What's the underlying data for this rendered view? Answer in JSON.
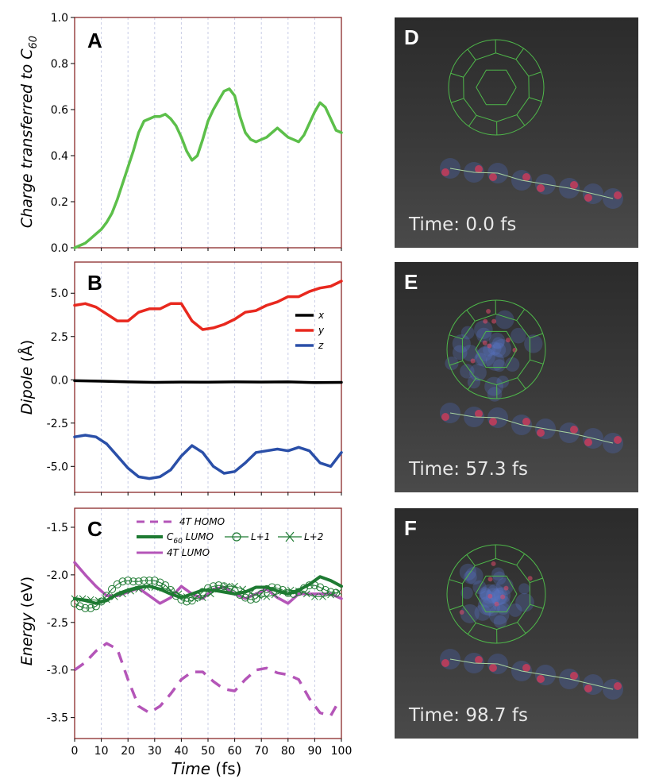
{
  "colors": {
    "green": "#5cbf4a",
    "red": "#e8281e",
    "black": "#000000",
    "blue": "#2a4fa8",
    "magenta": "#b455b8",
    "darkgreen": "#1e7a32",
    "frame": "#8a2a2a",
    "grid": "#c9cde6"
  },
  "x_axis": {
    "label_italic": "Time",
    "label_unit": "(fs)",
    "ticks": [
      0,
      10,
      20,
      30,
      40,
      50,
      60,
      70,
      80,
      90,
      100
    ]
  },
  "chart_data": [
    {
      "type": "line",
      "panel": "A",
      "ylabel": "Charge transferred to C",
      "ylabel_sub": "60",
      "ylim": [
        0,
        1.0
      ],
      "yticks": [
        "0.0",
        "0.2",
        "0.4",
        "0.6",
        "0.8",
        "1.0"
      ],
      "grid": "vertical",
      "series": [
        {
          "color": "green",
          "x": [
            0,
            2,
            4,
            6,
            8,
            10,
            12,
            14,
            16,
            18,
            20,
            22,
            24,
            26,
            28,
            30,
            32,
            34,
            36,
            38,
            40,
            42,
            44,
            46,
            48,
            50,
            52,
            54,
            56,
            58,
            60,
            62,
            64,
            66,
            68,
            70,
            72,
            74,
            76,
            78,
            80,
            82,
            84,
            86,
            88,
            90,
            92,
            94,
            96,
            98,
            100
          ],
          "y": [
            0,
            0.01,
            0.02,
            0.04,
            0.06,
            0.08,
            0.11,
            0.15,
            0.21,
            0.28,
            0.35,
            0.42,
            0.5,
            0.55,
            0.56,
            0.57,
            0.57,
            0.58,
            0.56,
            0.53,
            0.48,
            0.42,
            0.38,
            0.4,
            0.47,
            0.55,
            0.6,
            0.64,
            0.68,
            0.69,
            0.66,
            0.57,
            0.5,
            0.47,
            0.46,
            0.47,
            0.48,
            0.5,
            0.52,
            0.5,
            0.48,
            0.47,
            0.46,
            0.49,
            0.54,
            0.59,
            0.63,
            0.61,
            0.56,
            0.51,
            0.5
          ]
        }
      ]
    },
    {
      "type": "line",
      "panel": "B",
      "ylabel": "Dipole (Å)",
      "ylim": [
        -6.5,
        6.8
      ],
      "yticks": [
        "-5.0",
        "-2.5",
        "0.0",
        "2.5",
        "5.0"
      ],
      "grid": "vertical",
      "legend": [
        "x",
        "y",
        "z"
      ],
      "series": [
        {
          "name": "x",
          "color": "black",
          "x": [
            0,
            10,
            20,
            30,
            40,
            50,
            60,
            70,
            80,
            90,
            100
          ],
          "y": [
            -0.05,
            -0.08,
            -0.12,
            -0.15,
            -0.13,
            -0.14,
            -0.12,
            -0.13,
            -0.12,
            -0.16,
            -0.15
          ]
        },
        {
          "name": "y",
          "color": "red",
          "x": [
            0,
            4,
            8,
            12,
            16,
            20,
            24,
            28,
            32,
            36,
            40,
            44,
            48,
            52,
            56,
            60,
            64,
            68,
            72,
            76,
            80,
            84,
            88,
            92,
            96,
            100
          ],
          "y": [
            4.3,
            4.4,
            4.2,
            3.8,
            3.4,
            3.4,
            3.9,
            4.1,
            4.1,
            4.4,
            4.4,
            3.4,
            2.9,
            3.0,
            3.2,
            3.5,
            3.9,
            4.0,
            4.3,
            4.5,
            4.8,
            4.8,
            5.1,
            5.3,
            5.4,
            5.7
          ]
        },
        {
          "name": "z",
          "color": "blue",
          "x": [
            0,
            4,
            8,
            12,
            16,
            20,
            24,
            28,
            32,
            36,
            40,
            44,
            48,
            52,
            56,
            60,
            64,
            68,
            72,
            76,
            80,
            84,
            88,
            92,
            96,
            100
          ],
          "y": [
            -3.3,
            -3.2,
            -3.3,
            -3.7,
            -4.4,
            -5.1,
            -5.6,
            -5.7,
            -5.6,
            -5.2,
            -4.4,
            -3.8,
            -4.2,
            -5.0,
            -5.4,
            -5.3,
            -4.8,
            -4.2,
            -4.1,
            -4.0,
            -4.1,
            -3.9,
            -4.1,
            -4.8,
            -5.0,
            -4.2
          ]
        }
      ]
    },
    {
      "type": "line",
      "panel": "C",
      "ylabel": "Energy (eV)",
      "ylim": [
        -3.72,
        -1.3
      ],
      "yticks": [
        "-1.5",
        "-2.0",
        "-2.5",
        "-3.0",
        "-3.5"
      ],
      "grid": "vertical",
      "legend_labels": [
        "4T HOMO",
        "C",
        "60",
        "LUMO",
        "L+1",
        "L+2",
        "4T LUMO"
      ],
      "series": [
        {
          "name": "4T HOMO",
          "color": "magenta",
          "style": "dashed",
          "x": [
            0,
            4,
            8,
            12,
            16,
            20,
            24,
            28,
            32,
            36,
            40,
            44,
            48,
            52,
            56,
            60,
            64,
            68,
            72,
            76,
            80,
            84,
            88,
            92,
            96,
            98
          ],
          "y": [
            -3.0,
            -2.92,
            -2.8,
            -2.72,
            -2.78,
            -3.1,
            -3.38,
            -3.45,
            -3.38,
            -3.25,
            -3.1,
            -3.02,
            -3.02,
            -3.12,
            -3.2,
            -3.22,
            -3.1,
            -3.0,
            -2.98,
            -3.03,
            -3.05,
            -3.1,
            -3.3,
            -3.45,
            -3.48,
            -3.38
          ]
        },
        {
          "name": "4T LUMO",
          "color": "magenta",
          "style": "solid",
          "x": [
            0,
            4,
            8,
            12,
            16,
            20,
            24,
            28,
            32,
            36,
            40,
            44,
            48,
            52,
            56,
            60,
            64,
            68,
            72,
            76,
            80,
            84,
            88,
            92,
            96,
            100
          ],
          "y": [
            -1.87,
            -2.0,
            -2.12,
            -2.22,
            -2.22,
            -2.18,
            -2.14,
            -2.22,
            -2.3,
            -2.24,
            -2.12,
            -2.2,
            -2.25,
            -2.15,
            -2.13,
            -2.2,
            -2.25,
            -2.2,
            -2.15,
            -2.24,
            -2.3,
            -2.2,
            -2.2,
            -2.2,
            -2.2,
            -2.25
          ]
        },
        {
          "name": "C60 LUMO",
          "color": "darkgreen",
          "style": "solid-thick",
          "x": [
            0,
            4,
            8,
            12,
            16,
            20,
            24,
            28,
            32,
            36,
            40,
            44,
            48,
            52,
            56,
            60,
            64,
            68,
            72,
            76,
            80,
            84,
            88,
            92,
            96,
            100
          ],
          "y": [
            -2.25,
            -2.27,
            -2.3,
            -2.27,
            -2.2,
            -2.16,
            -2.13,
            -2.12,
            -2.15,
            -2.2,
            -2.24,
            -2.2,
            -2.16,
            -2.16,
            -2.18,
            -2.2,
            -2.18,
            -2.13,
            -2.13,
            -2.17,
            -2.2,
            -2.16,
            -2.1,
            -2.02,
            -2.06,
            -2.12
          ]
        },
        {
          "name": "L+1",
          "color": "darkgreen",
          "style": "circles",
          "x": [
            0,
            2,
            4,
            6,
            8,
            10,
            12,
            14,
            16,
            18,
            20,
            22,
            24,
            26,
            28,
            30,
            32,
            34,
            36,
            38,
            40,
            42,
            44,
            46,
            48,
            50,
            52,
            54,
            56,
            58,
            60,
            62,
            64,
            66,
            68,
            70,
            72,
            74,
            76,
            78,
            80,
            82,
            84,
            86,
            88,
            90,
            92,
            94,
            96,
            98
          ],
          "y": [
            -2.3,
            -2.33,
            -2.35,
            -2.35,
            -2.33,
            -2.28,
            -2.22,
            -2.15,
            -2.1,
            -2.07,
            -2.06,
            -2.07,
            -2.07,
            -2.06,
            -2.06,
            -2.06,
            -2.08,
            -2.11,
            -2.16,
            -2.22,
            -2.26,
            -2.28,
            -2.27,
            -2.23,
            -2.18,
            -2.14,
            -2.12,
            -2.11,
            -2.12,
            -2.14,
            -2.17,
            -2.21,
            -2.24,
            -2.26,
            -2.25,
            -2.2,
            -2.15,
            -2.13,
            -2.14,
            -2.16,
            -2.19,
            -2.2,
            -2.18,
            -2.14,
            -2.11,
            -2.11,
            -2.13,
            -2.16,
            -2.18,
            -2.19
          ]
        },
        {
          "name": "L+2",
          "color": "darkgreen",
          "style": "crosses",
          "x": [
            0,
            3,
            6,
            9,
            12,
            15,
            18,
            21,
            24,
            27,
            30,
            33,
            36,
            39,
            42,
            45,
            48,
            51,
            54,
            57,
            60,
            63,
            66,
            69,
            72,
            75,
            78,
            81,
            84,
            87,
            90,
            93,
            96,
            99
          ],
          "y": [
            -2.25,
            -2.25,
            -2.26,
            -2.27,
            -2.26,
            -2.23,
            -2.2,
            -2.17,
            -2.15,
            -2.13,
            -2.13,
            -2.14,
            -2.17,
            -2.2,
            -2.23,
            -2.25,
            -2.24,
            -2.2,
            -2.15,
            -2.12,
            -2.12,
            -2.15,
            -2.19,
            -2.22,
            -2.23,
            -2.21,
            -2.18,
            -2.16,
            -2.17,
            -2.2,
            -2.23,
            -2.23,
            -2.21,
            -2.18
          ]
        }
      ]
    }
  ],
  "panels": {
    "A": {
      "letter": "A"
    },
    "B": {
      "letter": "B"
    },
    "C": {
      "letter": "C"
    },
    "D": {
      "letter": "D",
      "time": "Time: 0.0 fs"
    },
    "E": {
      "letter": "E",
      "time": "Time: 57.3 fs"
    },
    "F": {
      "letter": "F",
      "time": "Time: 98.7 fs"
    }
  },
  "legend_b": [
    "x",
    "y",
    "z"
  ],
  "legend_c": {
    "homo": "4T HOMO",
    "c60_base": "C",
    "c60_sub": "60",
    "c60_rest": " LUMO",
    "l1": "L+1",
    "l2": "L+2",
    "lumo4t": "4T LUMO"
  }
}
